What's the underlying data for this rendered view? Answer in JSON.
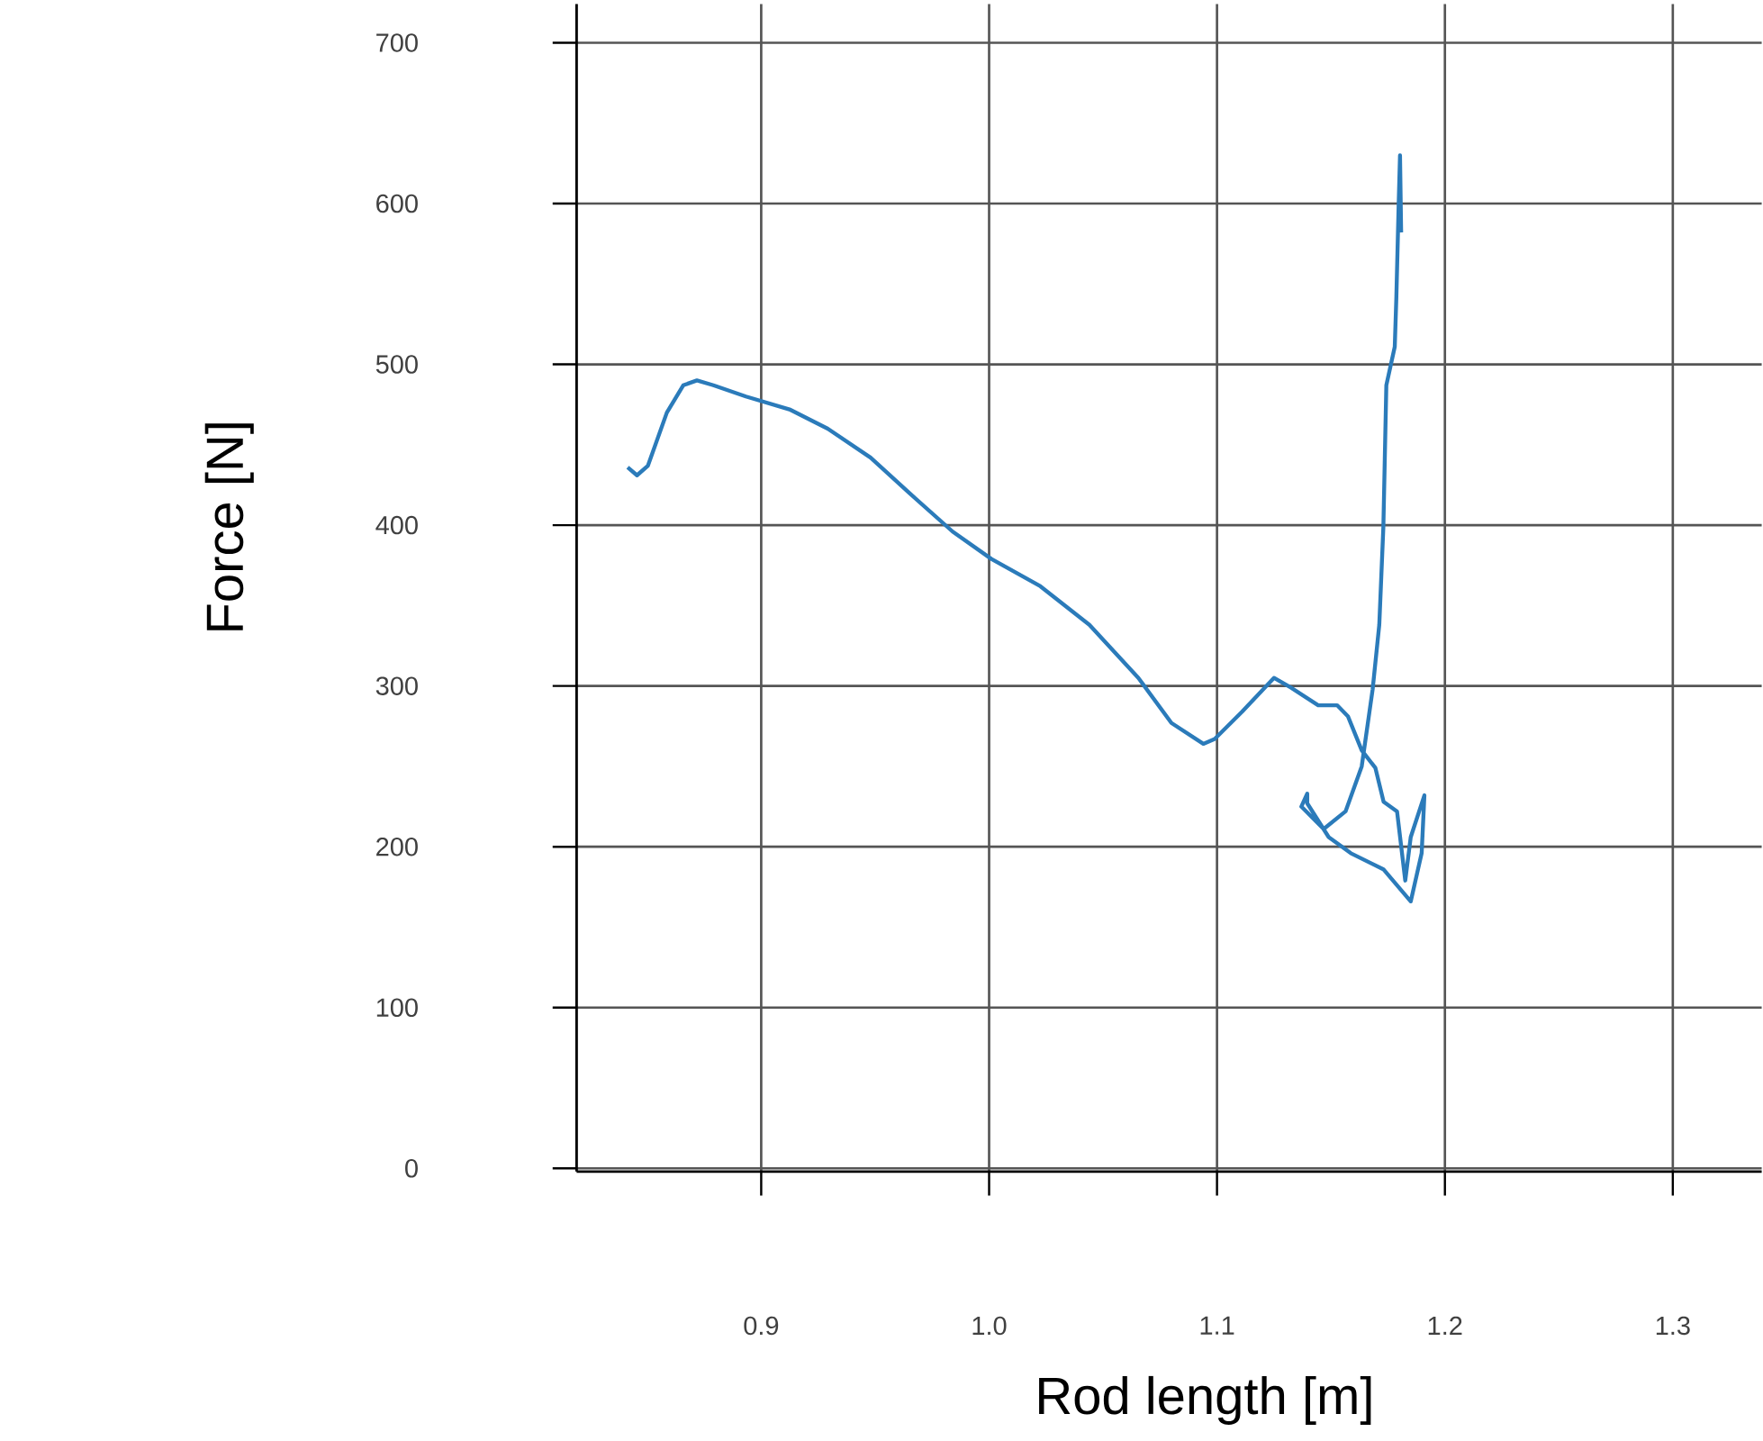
{
  "chart_data": {
    "type": "line",
    "xlabel": "Rod length [m]",
    "ylabel": "Force [N]",
    "x": [
      0.8414,
      0.8455,
      0.8503,
      0.8586,
      0.8658,
      0.8718,
      0.879,
      0.8933,
      0.9124,
      0.9292,
      0.948,
      0.965,
      0.984,
      1.001,
      1.0225,
      1.044,
      1.0655,
      1.08,
      1.094,
      1.099,
      1.111,
      1.125,
      1.1324,
      1.1444,
      1.1527,
      1.1575,
      1.1635,
      1.1695,
      1.1731,
      1.179,
      1.1826,
      1.185,
      1.191,
      1.1898,
      1.185,
      1.173,
      1.1587,
      1.149,
      1.1396,
      1.1396,
      1.137,
      1.1468,
      1.1564,
      1.1635,
      1.1683,
      1.1712,
      1.173,
      1.1743,
      1.178,
      1.1787,
      1.1797,
      1.1803,
      1.1808
    ],
    "values": [
      436,
      431,
      437,
      470,
      487,
      490,
      487,
      480,
      472,
      460,
      442,
      420,
      396,
      379,
      362,
      338,
      305,
      277,
      264,
      267,
      284,
      305,
      299,
      288,
      288,
      281,
      260,
      249,
      228,
      222,
      179,
      206,
      232,
      196,
      166,
      186,
      196,
      206,
      227,
      233,
      225,
      211,
      222,
      250,
      298,
      338,
      399,
      487,
      511,
      542,
      599,
      630,
      582
    ],
    "color": "#2b7bba",
    "line_style": "solid",
    "marker": "none",
    "grid": true,
    "xlim": [
      0.819,
      1.339
    ],
    "ylim": [
      -2,
      724
    ],
    "xticks": [
      0.9,
      {
        "value": 1.0,
        "label": "1.0"
      },
      1.1,
      1.2,
      1.3
    ],
    "yticks": [
      0,
      100,
      200,
      300,
      400,
      500,
      600,
      700
    ]
  }
}
